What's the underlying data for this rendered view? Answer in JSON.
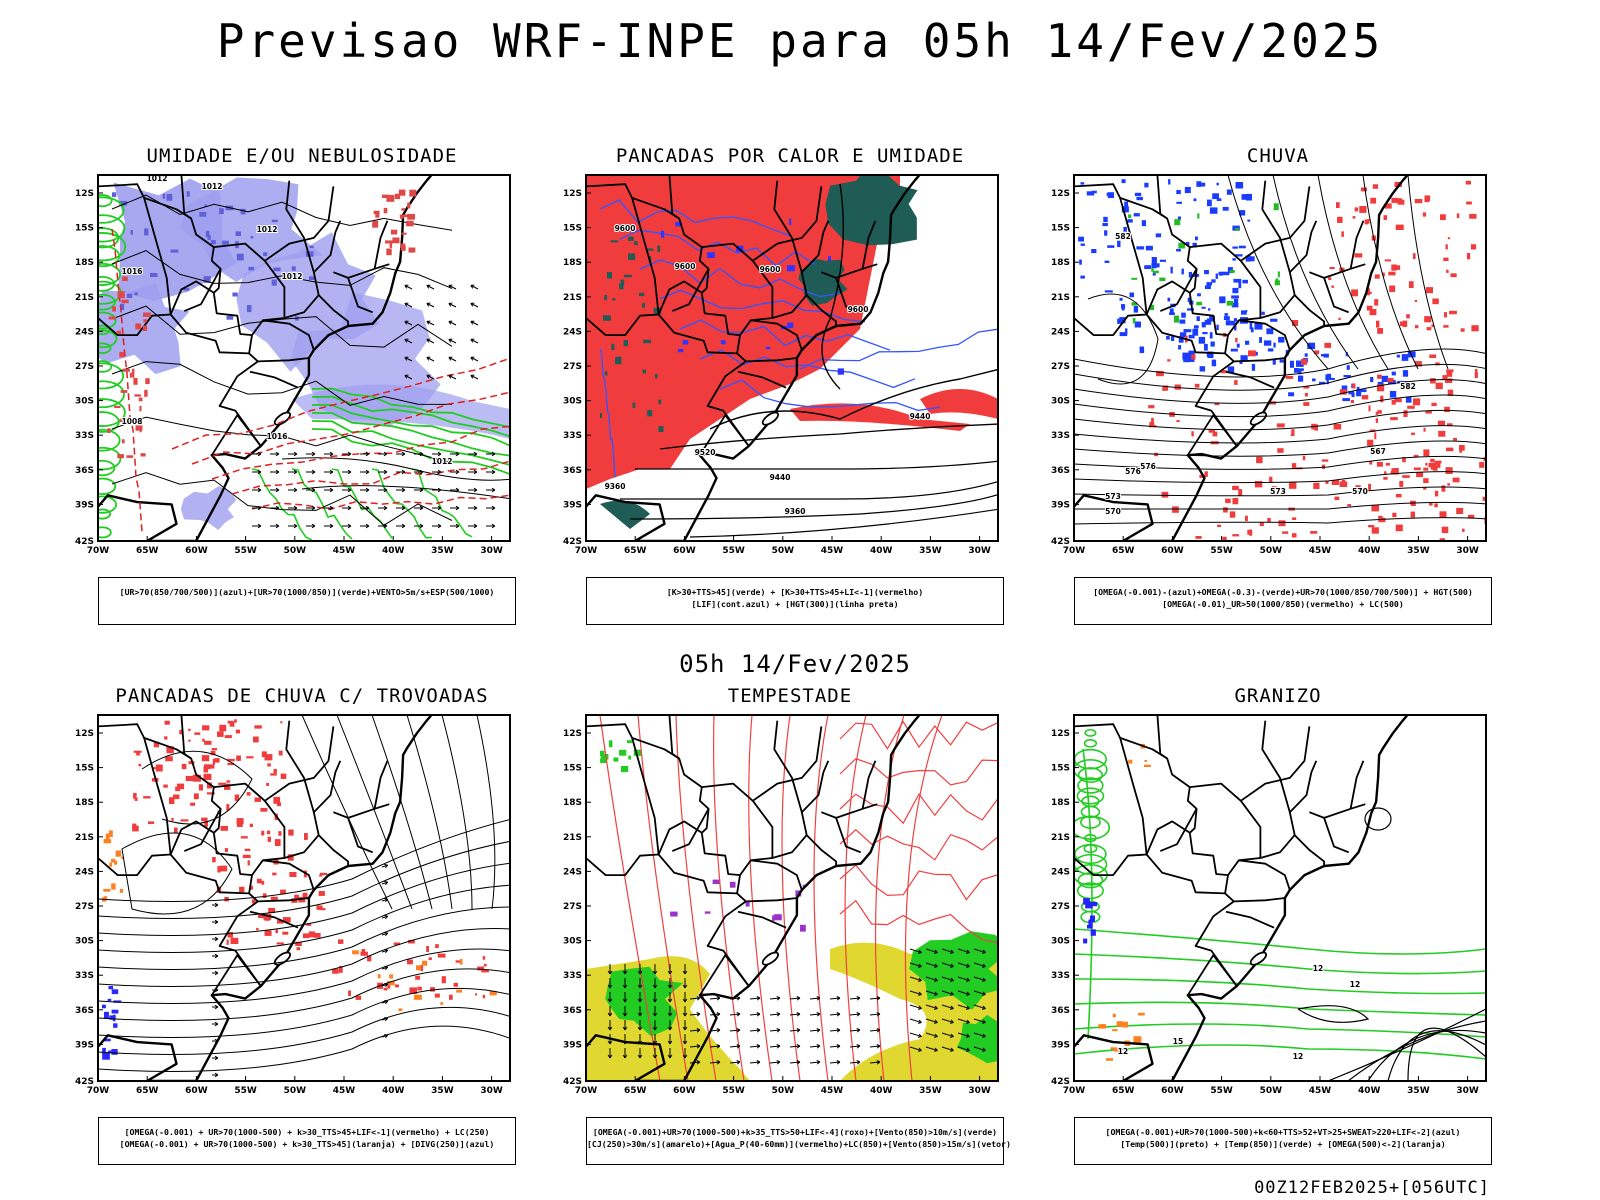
{
  "header": {
    "title": "Previsao WRF-INPE  para 05h 14/Fev/2025"
  },
  "mid_label": "05h 14/Fev/2025",
  "footer": "00Z12FEB2025+[056UTC]",
  "axes": {
    "lat_labels": [
      "12S",
      "15S",
      "18S",
      "21S",
      "24S",
      "27S",
      "30S",
      "33S",
      "36S",
      "39S",
      "42S"
    ],
    "lon_labels": [
      "70W",
      "65W",
      "60W",
      "55W",
      "50W",
      "45W",
      "40W",
      "35W",
      "30W"
    ]
  },
  "colors": {
    "humidity_blue": "#9f9ff0",
    "green_contour": "#22cc22",
    "red_fill": "#f03c3c",
    "dark_teal": "#1f5c55",
    "blue_contour": "#3355ff",
    "yellow_fill": "#e0d830",
    "purple": "#9933cc",
    "orange": "#ff8020"
  },
  "panels": [
    {
      "title": "UMIDADE E/OU NEBULOSIDADE",
      "legend": [
        "[UR>70(850/700/500)](azul)+[UR>70(1000/850)](verde)+VENTO>5m/s+ESP(500/1000)"
      ],
      "contour_labels": [
        "1012",
        "1012",
        "1012",
        "1016",
        "1012",
        "1008",
        "1016",
        "1012"
      ]
    },
    {
      "title": "PANCADAS POR CALOR E UMIDADE",
      "legend": [
        "[K>30+TTS>45](verde) + [K>30+TTS>45+LI<-1](vermelho)",
        "[LIF](cont.azul) + [HGT(300)](linha preta)"
      ],
      "contour_labels": [
        "9600",
        "9600",
        "9600",
        "9600",
        "9520",
        "9440",
        "9360",
        "9440",
        "9360"
      ]
    },
    {
      "title": "CHUVA",
      "legend": [
        "[OMEGA(-0.001)-(azul)+OMEGA(-0.3)-(verde)+UR>70(1000/850/700/500)] + HGT(500)",
        "[OMEGA(-0.01)_UR>50(1000/850)(vermelho) + LC(500)"
      ],
      "contour_labels": [
        "582",
        "576",
        "576",
        "573",
        "570",
        "582",
        "570",
        "567",
        "573"
      ]
    },
    {
      "title": "PANCADAS DE CHUVA C/ TROVOADAS",
      "legend": [
        "[OMEGA(-0.001) + UR>70(1000-500) + k>30_TTS>45+LIF<-1](vermelho) + LC(250)",
        "[OMEGA(-0.001) + UR>70(1000-500) + k>30_TTS>45](laranja) + [DIVG(250)](azul)"
      ]
    },
    {
      "title": "TEMPESTADE",
      "legend": [
        "[OMEGA(-0.001)+UR>70(1000-500)+k>35_TTS>50+LIF<-4](roxo)+[Vento(850)>10m/s](verde)",
        "[CJ(250)>30m/s](amarelo)+[Agua_P(40-60mm)](vermelho)+LC(850)+[Vento(850)>15m/s](vetor)"
      ]
    },
    {
      "title": "GRANIZO",
      "legend": [
        "[OMEGA(-0.001)+UR>70(1000-500)+k<60+TTS>52+VT>25+SWEAT>220+LIF<-2](azul)",
        "[Temp(500)](preto) + [Temp(850)](verde) + [OMEGA(500)<-2](laranja)"
      ],
      "contour_labels": [
        "12",
        "12",
        "15",
        "12",
        "12"
      ]
    }
  ]
}
